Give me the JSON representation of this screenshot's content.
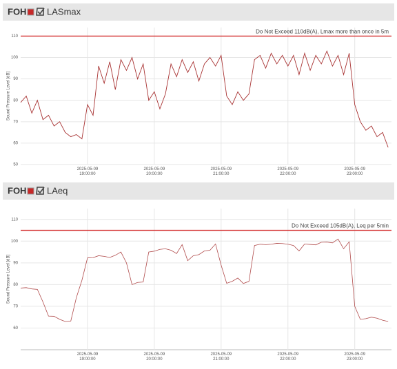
{
  "chart_data": [
    {
      "type": "line",
      "panel_title": "FOH",
      "title": "LASmax",
      "y_label": "Sound Pressure Level [dB]",
      "xlim": [
        "2025-05-09 18:00:00",
        "2025-05-09 23:33:00"
      ],
      "xticks": [
        "2025-05-09 19:00:00",
        "2025-05-09 20:00:00",
        "2025-05-09 21:00:00",
        "2025-05-09 22:00:00",
        "2025-05-09 23:00:00"
      ],
      "ylim": [
        50,
        114
      ],
      "yticks": [
        50,
        60,
        70,
        80,
        90,
        100,
        110
      ],
      "grid": true,
      "annotation": {
        "text": "Do Not Exceed 110dB(A), Lmax more than once in 5m",
        "value": 110,
        "color": "#d32f2f"
      },
      "x": [
        "2025-05-09 18:00:00",
        "2025-05-09 18:05:00",
        "2025-05-09 18:10:00",
        "2025-05-09 18:15:00",
        "2025-05-09 18:20:00",
        "2025-05-09 18:25:00",
        "2025-05-09 18:30:00",
        "2025-05-09 18:35:00",
        "2025-05-09 18:40:00",
        "2025-05-09 18:45:00",
        "2025-05-09 18:50:00",
        "2025-05-09 18:55:00",
        "2025-05-09 19:00:00",
        "2025-05-09 19:05:00",
        "2025-05-09 19:10:00",
        "2025-05-09 19:15:00",
        "2025-05-09 19:20:00",
        "2025-05-09 19:25:00",
        "2025-05-09 19:30:00",
        "2025-05-09 19:35:00",
        "2025-05-09 19:40:00",
        "2025-05-09 19:45:00",
        "2025-05-09 19:50:00",
        "2025-05-09 19:55:00",
        "2025-05-09 20:00:00",
        "2025-05-09 20:05:00",
        "2025-05-09 20:10:00",
        "2025-05-09 20:15:00",
        "2025-05-09 20:20:00",
        "2025-05-09 20:25:00",
        "2025-05-09 20:30:00",
        "2025-05-09 20:35:00",
        "2025-05-09 20:40:00",
        "2025-05-09 20:45:00",
        "2025-05-09 20:50:00",
        "2025-05-09 20:55:00",
        "2025-05-09 21:00:00",
        "2025-05-09 21:05:00",
        "2025-05-09 21:10:00",
        "2025-05-09 21:15:00",
        "2025-05-09 21:20:00",
        "2025-05-09 21:25:00",
        "2025-05-09 21:30:00",
        "2025-05-09 21:35:00",
        "2025-05-09 21:40:00",
        "2025-05-09 21:45:00",
        "2025-05-09 21:50:00",
        "2025-05-09 21:55:00",
        "2025-05-09 22:00:00",
        "2025-05-09 22:05:00",
        "2025-05-09 22:10:00",
        "2025-05-09 22:15:00",
        "2025-05-09 22:20:00",
        "2025-05-09 22:25:00",
        "2025-05-09 22:30:00",
        "2025-05-09 22:35:00",
        "2025-05-09 22:40:00",
        "2025-05-09 22:45:00",
        "2025-05-09 22:50:00",
        "2025-05-09 22:55:00",
        "2025-05-09 23:00:00",
        "2025-05-09 23:05:00",
        "2025-05-09 23:10:00",
        "2025-05-09 23:15:00",
        "2025-05-09 23:20:00",
        "2025-05-09 23:25:00",
        "2025-05-09 23:30:00"
      ],
      "series": [
        {
          "name": "LASmax",
          "color": "#a83232",
          "values": [
            79,
            82,
            74,
            80,
            71,
            73,
            68,
            70,
            65,
            63,
            64,
            62,
            78,
            73,
            96,
            88,
            98,
            85,
            99,
            94,
            100,
            90,
            97,
            80,
            84,
            76,
            83,
            97,
            91,
            99,
            93,
            98,
            89,
            97,
            100,
            96,
            101,
            82,
            78,
            84,
            80,
            83,
            99,
            101,
            95,
            102,
            97,
            101,
            96,
            101,
            92,
            102,
            94,
            101,
            97,
            103,
            96,
            101,
            92,
            102,
            78,
            70,
            66,
            68,
            63,
            65,
            58
          ]
        }
      ]
    },
    {
      "type": "line",
      "panel_title": "FOH",
      "title": "LAeq",
      "y_label": "Sound Pressure Level [dB]",
      "xlim": [
        "2025-05-09 18:00:00",
        "2025-05-09 23:33:00"
      ],
      "xticks": [
        "2025-05-09 19:00:00",
        "2025-05-09 20:00:00",
        "2025-05-09 21:00:00",
        "2025-05-09 22:00:00",
        "2025-05-09 23:00:00"
      ],
      "ylim": [
        50,
        115
      ],
      "yticks": [
        60,
        70,
        80,
        90,
        100,
        110
      ],
      "grid": true,
      "annotation": {
        "text": "Do Not Exceed 105dB(A), Leq per 5min",
        "value": 105,
        "color": "#d32f2f"
      },
      "x": [
        "2025-05-09 18:00:00",
        "2025-05-09 18:05:00",
        "2025-05-09 18:10:00",
        "2025-05-09 18:15:00",
        "2025-05-09 18:20:00",
        "2025-05-09 18:25:00",
        "2025-05-09 18:30:00",
        "2025-05-09 18:35:00",
        "2025-05-09 18:40:00",
        "2025-05-09 18:45:00",
        "2025-05-09 18:50:00",
        "2025-05-09 18:55:00",
        "2025-05-09 19:00:00",
        "2025-05-09 19:05:00",
        "2025-05-09 19:10:00",
        "2025-05-09 19:15:00",
        "2025-05-09 19:20:00",
        "2025-05-09 19:25:00",
        "2025-05-09 19:30:00",
        "2025-05-09 19:35:00",
        "2025-05-09 19:40:00",
        "2025-05-09 19:45:00",
        "2025-05-09 19:50:00",
        "2025-05-09 19:55:00",
        "2025-05-09 20:00:00",
        "2025-05-09 20:05:00",
        "2025-05-09 20:10:00",
        "2025-05-09 20:15:00",
        "2025-05-09 20:20:00",
        "2025-05-09 20:25:00",
        "2025-05-09 20:30:00",
        "2025-05-09 20:35:00",
        "2025-05-09 20:40:00",
        "2025-05-09 20:45:00",
        "2025-05-09 20:50:00",
        "2025-05-09 20:55:00",
        "2025-05-09 21:00:00",
        "2025-05-09 21:05:00",
        "2025-05-09 21:10:00",
        "2025-05-09 21:15:00",
        "2025-05-09 21:20:00",
        "2025-05-09 21:25:00",
        "2025-05-09 21:30:00",
        "2025-05-09 21:35:00",
        "2025-05-09 21:40:00",
        "2025-05-09 21:45:00",
        "2025-05-09 21:50:00",
        "2025-05-09 21:55:00",
        "2025-05-09 22:00:00",
        "2025-05-09 22:05:00",
        "2025-05-09 22:10:00",
        "2025-05-09 22:15:00",
        "2025-05-09 22:20:00",
        "2025-05-09 22:25:00",
        "2025-05-09 22:30:00",
        "2025-05-09 22:35:00",
        "2025-05-09 22:40:00",
        "2025-05-09 22:45:00",
        "2025-05-09 22:50:00",
        "2025-05-09 22:55:00",
        "2025-05-09 23:00:00",
        "2025-05-09 23:05:00",
        "2025-05-09 23:10:00",
        "2025-05-09 23:15:00",
        "2025-05-09 23:20:00",
        "2025-05-09 23:25:00",
        "2025-05-09 23:30:00"
      ],
      "series": [
        {
          "name": "LAeq",
          "color": "#b04a4a",
          "values": [
            78.4,
            78.6,
            78.0,
            77.8,
            72.0,
            65.5,
            65.4,
            64.0,
            63.0,
            63.2,
            74.0,
            82.0,
            92.3,
            92.4,
            93.3,
            93.0,
            92.5,
            93.5,
            95.0,
            90.0,
            80.0,
            81.0,
            81.2,
            95.0,
            95.4,
            96.2,
            96.5,
            95.8,
            94.3,
            98.4,
            91.0,
            93.3,
            93.8,
            95.5,
            95.8,
            98.7,
            89.0,
            80.6,
            81.5,
            83.0,
            80.5,
            81.5,
            98.0,
            98.6,
            98.4,
            98.6,
            99.0,
            98.9,
            98.6,
            98.0,
            95.5,
            98.7,
            98.5,
            98.3,
            99.5,
            99.6,
            99.2,
            101.0,
            96.5,
            99.7,
            70.0,
            64.0,
            64.3,
            65.0,
            64.5,
            63.6,
            63.0
          ]
        }
      ]
    }
  ]
}
